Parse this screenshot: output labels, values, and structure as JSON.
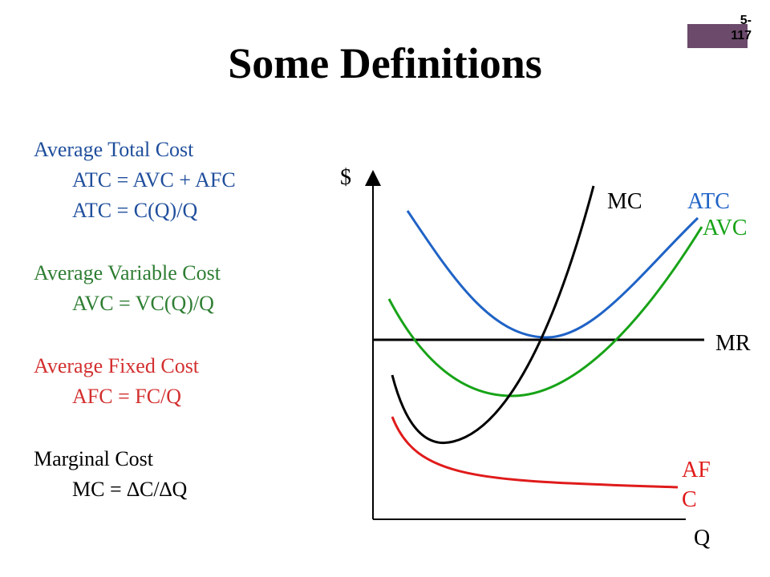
{
  "slide": {
    "number": "5-\n117",
    "title": "Some Definitions"
  },
  "definitions": {
    "atc": {
      "heading": "Average Total Cost",
      "formula1": "ATC = AVC + AFC",
      "formula2": "ATC = C(Q)/Q"
    },
    "avc": {
      "heading": "Average Variable Cost",
      "formula1": "AVC = VC(Q)/Q"
    },
    "afc": {
      "heading": "Average Fixed Cost",
      "formula1": "AFC = FC/Q"
    },
    "mc": {
      "heading": "Marginal Cost",
      "formula1": "MC = ∆C/∆Q"
    }
  },
  "graph": {
    "y_axis_label": "$",
    "x_axis_label": "Q",
    "curves": {
      "mc": {
        "label": "MC",
        "color": "#000000"
      },
      "atc": {
        "label": "ATC",
        "color": "#1f63c6"
      },
      "avc": {
        "label": "AVC",
        "color": "#17a317"
      },
      "mr": {
        "label": "MR",
        "color": "#000000"
      },
      "afc": {
        "label_line1": "AF",
        "label_line2": "C",
        "color": "#e01b1b"
      }
    }
  },
  "colors": {
    "atc_text": "#1f4e9c",
    "avc_text": "#2e7d32",
    "afc_text": "#d32f2f",
    "slide_number_box": "#6b4a6b"
  }
}
